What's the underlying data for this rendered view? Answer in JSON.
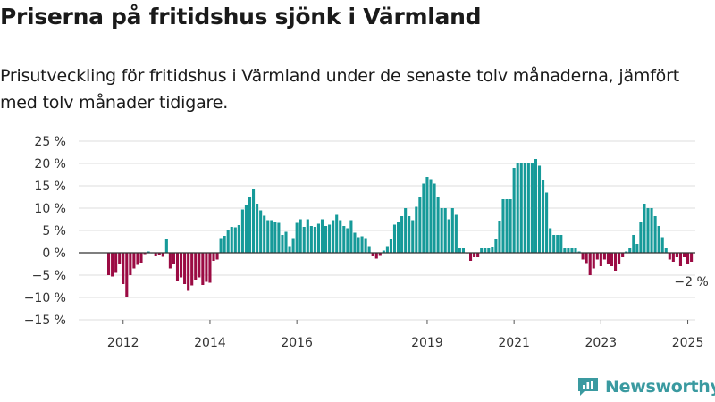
{
  "title": "Priserna på fritidshus sjönk i Värmland",
  "subtitle": "Prisutveckling för fritidshus i Värmland under de senaste tolv månaderna, jämfört med tolv månader tidigare.",
  "brand": {
    "name": "Newsworthy"
  },
  "colors": {
    "positive": "#169a99",
    "negative": "#9b0b43",
    "grid": "#dddddd",
    "zero_line": "#333333",
    "brand": "#3a9aa0"
  },
  "chart_data": {
    "type": "bar",
    "title": "Priserna på fritidshus sjönk i Värmland",
    "xlabel": "",
    "ylabel": "",
    "ylim": [
      -15,
      25
    ],
    "yticks": [
      25,
      20,
      15,
      10,
      5,
      0,
      -5,
      -10,
      -15
    ],
    "ytick_labels": [
      "25 %",
      "20 %",
      "15 %",
      "10 %",
      "5 %",
      "0 %",
      "−5 %",
      "−10 %",
      "−15 %"
    ],
    "grid": true,
    "start_year": 2011,
    "start_month": 9,
    "xticks": [
      {
        "label": "2012",
        "year": 2012
      },
      {
        "label": "2014",
        "year": 2014
      },
      {
        "label": "2016",
        "year": 2016
      },
      {
        "label": "2019",
        "year": 2019
      },
      {
        "label": "2021",
        "year": 2021
      },
      {
        "label": "2023",
        "year": 2023
      },
      {
        "label": "2025",
        "year": 2025
      }
    ],
    "annotation": {
      "text": "−2 %"
    },
    "values": [
      -5,
      -5.3,
      -4.5,
      -2.5,
      -7,
      -9.8,
      -5,
      -3.5,
      -2.7,
      -2.2,
      -0.3,
      0.3,
      0,
      -0.8,
      -0.5,
      -0.9,
      3.2,
      -3.5,
      -2.5,
      -6.3,
      -5.5,
      -7,
      -8.5,
      -7.3,
      -6,
      -5.5,
      -7.2,
      -6.5,
      -6.7,
      -1.8,
      -1.5,
      3.3,
      3.8,
      5,
      5.8,
      5.7,
      6.2,
      9.7,
      10.7,
      12.5,
      14.2,
      11,
      9.5,
      8.3,
      7.3,
      7.3,
      7,
      6.7,
      4,
      4.7,
      1.5,
      3.3,
      6.7,
      7.5,
      5.8,
      7.5,
      6,
      5.8,
      6.5,
      7.5,
      6,
      6.3,
      7.3,
      8.5,
      7.3,
      6,
      5.5,
      7.3,
      4.5,
      3.5,
      3.7,
      3.3,
      1.5,
      -0.8,
      -1.3,
      -0.7,
      0.5,
      1.5,
      3,
      6.3,
      7,
      8.2,
      10,
      8.2,
      7.3,
      10.3,
      12.5,
      15.5,
      17,
      16.5,
      15.5,
      12.5,
      10,
      10,
      7.5,
      10,
      8.5,
      1,
      1,
      -0.1,
      -1.8,
      -1,
      -1,
      1,
      1,
      1,
      1.3,
      3,
      7.2,
      12,
      12,
      12,
      19,
      20,
      20,
      20,
      20,
      20,
      21,
      19.5,
      16.3,
      13.5,
      5.5,
      4,
      4,
      4,
      1,
      1,
      1,
      1,
      0.3,
      -1.5,
      -2.3,
      -5,
      -3.5,
      -1.5,
      -3,
      -1.5,
      -2.5,
      -3,
      -4,
      -2.5,
      -1,
      0.3,
      1,
      4,
      2,
      7,
      11,
      10,
      10,
      8.2,
      6,
      3.5,
      1,
      -1.5,
      -2,
      -1,
      -3,
      -1,
      -2.5,
      -2
    ]
  }
}
